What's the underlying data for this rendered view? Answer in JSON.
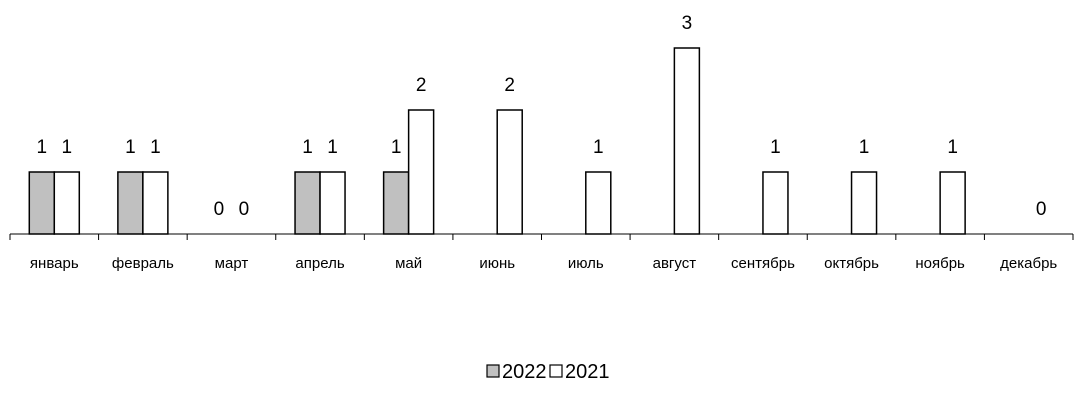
{
  "chart_data": {
    "type": "bar",
    "categories": [
      "январь",
      "февраль",
      "март",
      "апрель",
      "май",
      "июнь",
      "июль",
      "август",
      "сентябрь",
      "октябрь",
      "ноябрь",
      "декабрь"
    ],
    "series": [
      {
        "name": "2022",
        "color": "#c0c0c0",
        "values": [
          1,
          1,
          0,
          1,
          1,
          null,
          null,
          null,
          null,
          null,
          null,
          null
        ],
        "labels": [
          "1",
          "1",
          "0",
          "1",
          "1",
          "",
          "",
          "",
          "",
          "",
          "",
          ""
        ]
      },
      {
        "name": "2021",
        "color": "#ffffff",
        "values": [
          1,
          1,
          0,
          1,
          2,
          2,
          1,
          3,
          1,
          1,
          1,
          0
        ],
        "labels": [
          "1",
          "1",
          "0",
          "1",
          "2",
          "2",
          "1",
          "3",
          "1",
          "1",
          "1",
          "0"
        ]
      }
    ],
    "ylim": [
      0,
      3
    ],
    "grid": false,
    "legend_position": "bottom"
  }
}
